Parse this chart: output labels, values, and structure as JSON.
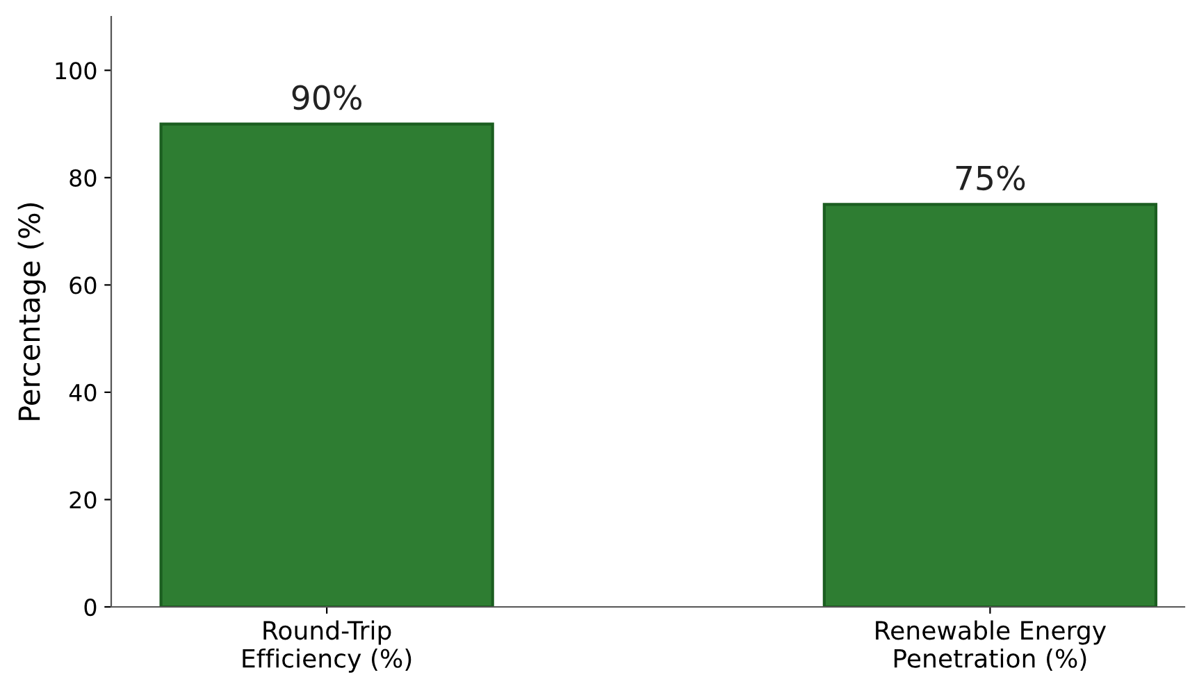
{
  "chart_data": {
    "type": "bar",
    "ylabel": "Percentage (%)",
    "categories": [
      "Round-Trip\nEfficiency (%)",
      "Renewable Energy\nPenetration (%)"
    ],
    "values": [
      90,
      75
    ],
    "color": "#2e7d32",
    "value_labels": [
      "90%",
      "75%"
    ],
    "ylim": [
      0,
      110
    ],
    "yticks": [
      0,
      20,
      40,
      60,
      80,
      100
    ],
    "grid": false,
    "legend": false
  }
}
